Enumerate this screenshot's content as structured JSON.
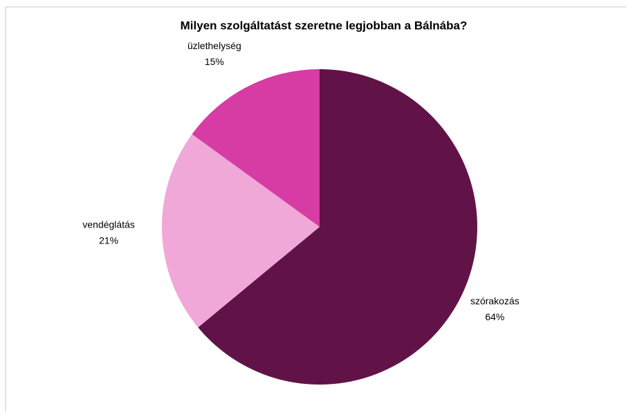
{
  "chart_data": {
    "type": "pie",
    "title": "Milyen szolgáltatást szeretne legjobban a Bálnába?",
    "categories": [
      "szórakozás",
      "vendéglátás",
      "üzlethelység"
    ],
    "values": [
      64,
      21,
      15
    ],
    "value_labels": [
      "64%",
      "21%",
      "15%"
    ],
    "colors": [
      "#611347",
      "#f0a8d8",
      "#d63ca4"
    ]
  }
}
